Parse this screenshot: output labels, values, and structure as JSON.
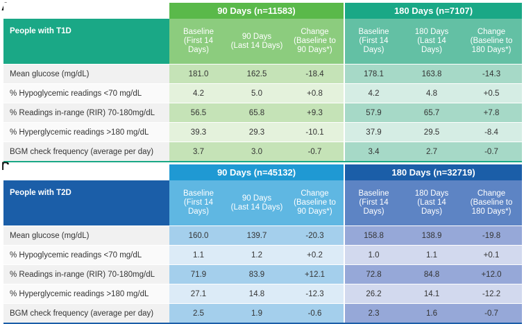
{
  "panelA": {
    "letter": "A",
    "group90": "90 Days (n=11583)",
    "group180": "180 Days (n=7107)",
    "people": "People with T1D",
    "headers": {
      "baseline": [
        "Baseline",
        "(First 14",
        "Days)"
      ],
      "d90": [
        "90 Days",
        "(Last 14 Days)"
      ],
      "change90": [
        "Change",
        "(Baseline to",
        "90 Days*)"
      ],
      "baseline2": [
        "Baseline",
        "(First 14",
        "Days)"
      ],
      "d180": [
        "180 Days",
        "(Last 14",
        "Days)"
      ],
      "change180": [
        "Change",
        "(Baseline to",
        "180 Days*)"
      ]
    },
    "rows": [
      {
        "label": "Mean glucose (mg/dL)",
        "v": [
          "181.0",
          "162.5",
          "-18.4",
          "178.1",
          "163.8",
          "-14.3"
        ]
      },
      {
        "label": "% Hypoglycemic readings <70 mg/dL",
        "v": [
          "4.2",
          "5.0",
          "+0.8",
          "4.2",
          "4.8",
          "+0.5"
        ]
      },
      {
        "label": "% Readings in-range (RIR) 70-180mg/dL",
        "v": [
          "56.5",
          "65.8",
          "+9.3",
          "57.9",
          "65.7",
          "+7.8"
        ]
      },
      {
        "label": "% Hyperglycemic readings >180 mg/dL",
        "v": [
          "39.3",
          "29.3",
          "-10.1",
          "37.9",
          "29.5",
          "-8.4"
        ]
      },
      {
        "label": "BGM check frequency (average per day)",
        "v": [
          "3.7",
          "3.0",
          "-0.7",
          "3.4",
          "2.7",
          "-0.7"
        ]
      }
    ]
  },
  "panelB": {
    "letter": "B",
    "group90": "90 Days (n=45132)",
    "group180": "180 Days (n=32719)",
    "people": "People with T2D",
    "headers": {
      "baseline": [
        "Baseline",
        "(First 14",
        "Days)"
      ],
      "d90": [
        "90 Days",
        "(Last 14 Days)"
      ],
      "change90": [
        "Change",
        "(Baseline to",
        "90 Days*)"
      ],
      "baseline2": [
        "Baseline",
        "(First 14",
        "Days)"
      ],
      "d180": [
        "180 Days",
        "(Last 14",
        "Days)"
      ],
      "change180": [
        "Change",
        "(Baseline to",
        "180 Days*)"
      ]
    },
    "rows": [
      {
        "label": "Mean glucose (mg/dL)",
        "v": [
          "160.0",
          "139.7",
          "-20.3",
          "158.8",
          "138.9",
          "-19.8"
        ]
      },
      {
        "label": "% Hypoglycemic readings <70 mg/dL",
        "v": [
          "1.1",
          "1.2",
          "+0.2",
          "1.0",
          "1.1",
          "+0.1"
        ]
      },
      {
        "label": "% Readings in-range (RIR) 70-180mg/dL",
        "v": [
          "71.9",
          "83.9",
          "+12.1",
          "72.8",
          "84.8",
          "+12.0"
        ]
      },
      {
        "label": "% Hyperglycemic readings >180 mg/dL",
        "v": [
          "27.1",
          "14.8",
          "-12.3",
          "26.2",
          "14.1",
          "-12.2"
        ]
      },
      {
        "label": "BGM check frequency (average per day)",
        "v": [
          "2.5",
          "1.9",
          "-0.6",
          "2.3",
          "1.6",
          "-0.7"
        ]
      }
    ]
  }
}
